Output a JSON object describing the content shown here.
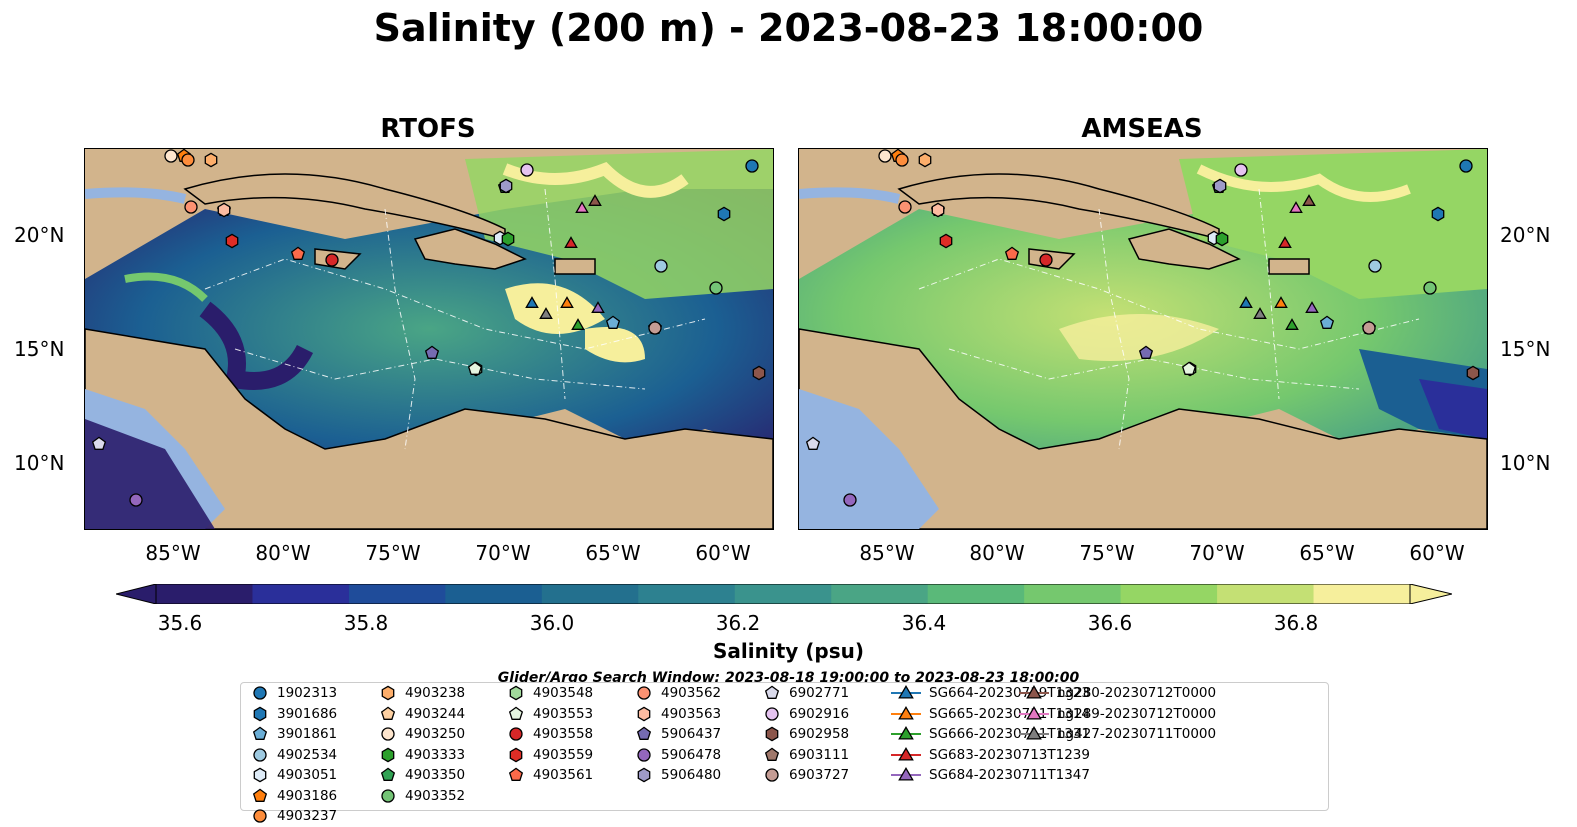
{
  "title": "Salinity (200 m) - 2023-08-23 18:00:00",
  "panels": [
    {
      "title": "RTOFS"
    },
    {
      "title": "AMSEAS"
    }
  ],
  "axes": {
    "lat_labels": [
      "20°N",
      "15°N",
      "10°N"
    ],
    "lon_labels": [
      "85°W",
      "80°W",
      "75°W",
      "70°W",
      "65°W",
      "60°W"
    ]
  },
  "colorbar": {
    "title": "Salinity (psu)",
    "ticks": [
      "35.6",
      "35.8",
      "36.0",
      "36.2",
      "36.4",
      "36.6",
      "36.8"
    ],
    "colors": [
      "#2a1d6b",
      "#2a2f9a",
      "#1f4c9a",
      "#1b5f92",
      "#23708e",
      "#2d8190",
      "#3a938d",
      "#4aa585",
      "#5ab979",
      "#75c86e",
      "#95d664",
      "#c4e074",
      "#f6ef9c"
    ]
  },
  "search_window": "Glider/Argo Search Window: 2023-08-18 19:00:00 to 2023-08-23 18:00:00",
  "legend": [
    {
      "label": "1902313",
      "marker": "circle",
      "color": "#1f77b4"
    },
    {
      "label": "3901686",
      "marker": "hexagon",
      "color": "#1f77b4"
    },
    {
      "label": "3901861",
      "marker": "pentagon",
      "color": "#6baed6"
    },
    {
      "label": "4902534",
      "marker": "circle",
      "color": "#9ecae1"
    },
    {
      "label": "4903051",
      "marker": "hexagon",
      "color": "#deebf7"
    },
    {
      "label": "4903186",
      "marker": "pentagon",
      "color": "#ff7f0e"
    },
    {
      "label": "4903237",
      "marker": "circle",
      "color": "#fd8d3c"
    },
    {
      "label": "4903238",
      "marker": "hexagon",
      "color": "#fdae6b"
    },
    {
      "label": "4903244",
      "marker": "pentagon",
      "color": "#fdd0a2"
    },
    {
      "label": "4903250",
      "marker": "circle",
      "color": "#fee6ce"
    },
    {
      "label": "4903333",
      "marker": "hexagon",
      "color": "#2ca02c"
    },
    {
      "label": "4903350",
      "marker": "pentagon",
      "color": "#31a354"
    },
    {
      "label": "4903352",
      "marker": "circle",
      "color": "#74c476"
    },
    {
      "label": "4903548",
      "marker": "hexagon",
      "color": "#a1d99b"
    },
    {
      "label": "4903553",
      "marker": "pentagon",
      "color": "#e5f5e0"
    },
    {
      "label": "4903558",
      "marker": "circle",
      "color": "#d62728"
    },
    {
      "label": "4903559",
      "marker": "hexagon",
      "color": "#de2d26"
    },
    {
      "label": "4903561",
      "marker": "pentagon",
      "color": "#fb6a4a"
    },
    {
      "label": "4903562",
      "marker": "circle",
      "color": "#fc9272"
    },
    {
      "label": "4903563",
      "marker": "hexagon",
      "color": "#fcbba1"
    },
    {
      "label": "5906437",
      "marker": "pentagon",
      "color": "#756bb1"
    },
    {
      "label": "5906478",
      "marker": "circle",
      "color": "#9467bd"
    },
    {
      "label": "5906480",
      "marker": "hexagon",
      "color": "#9e9ac8"
    },
    {
      "label": "6902771",
      "marker": "pentagon",
      "color": "#dadaeb"
    },
    {
      "label": "6902916",
      "marker": "circle",
      "color": "#e5c3f0"
    },
    {
      "label": "6902958",
      "marker": "hexagon",
      "color": "#8c564b"
    },
    {
      "label": "6903111",
      "marker": "pentagon",
      "color": "#a0786b"
    },
    {
      "label": "6903727",
      "marker": "circle",
      "color": "#c49c94"
    },
    {
      "label": "SG664-20230719T1323",
      "marker": "triangle",
      "color": "#1f77b4"
    },
    {
      "label": "SG665-20230711T1314",
      "marker": "triangle",
      "color": "#ff7f0e"
    },
    {
      "label": "SG666-20230711T1331",
      "marker": "triangle",
      "color": "#2ca02c"
    },
    {
      "label": "SG683-20230713T1239",
      "marker": "triangle",
      "color": "#d62728"
    },
    {
      "label": "SG684-20230711T1347",
      "marker": "triangle",
      "color": "#9467bd"
    },
    {
      "label": "ng280-20230712T0000",
      "marker": "triangle",
      "color": "#8c564b"
    },
    {
      "label": "ng289-20230712T0000",
      "marker": "triangle",
      "color": "#e377c2"
    },
    {
      "label": "ng427-20230711T0000",
      "marker": "triangle",
      "color": "#7f7f7f"
    }
  ]
}
